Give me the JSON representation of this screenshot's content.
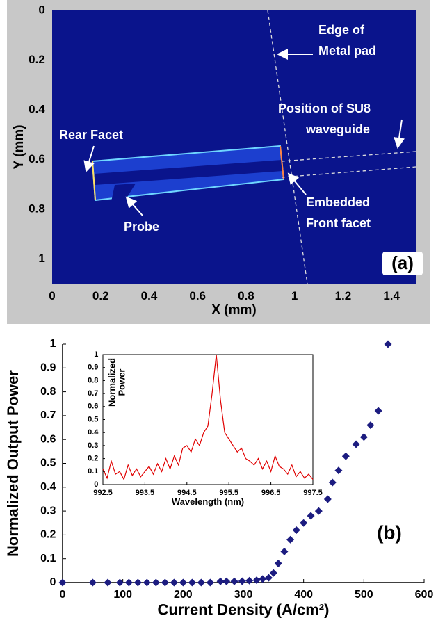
{
  "chart_data": [
    {
      "type": "image",
      "x_label": "X (mm)",
      "y_label": "Y (mm)",
      "xlim": [
        0,
        1.5
      ],
      "ylim": [
        0,
        1.1
      ],
      "y_reversed": true,
      "xticks": [
        0,
        0.2,
        0.4,
        0.6,
        0.8,
        1,
        1.2,
        1.4
      ],
      "yticks": [
        0,
        0.2,
        0.4,
        0.6,
        0.8,
        1
      ],
      "annotations": [
        "Rear Facet",
        "Probe",
        [
          "Embedded",
          "Front facet"
        ],
        [
          "Edge of",
          "Metal pad"
        ],
        [
          "Position of SU8",
          "waveguide"
        ]
      ],
      "panel_label": "(a)"
    },
    {
      "type": "scatter",
      "x_label": "Current Density (A/cm²)",
      "y_label": "Normalized Output Power",
      "xlim": [
        0,
        600
      ],
      "ylim": [
        0,
        1
      ],
      "xticks": [
        0,
        100,
        200,
        300,
        400,
        500,
        600
      ],
      "yticks": [
        0,
        0.1,
        0.2,
        0.3,
        0.4,
        0.5,
        0.6,
        0.7,
        0.8,
        0.9,
        1
      ],
      "color": "#1c1c80",
      "x": [
        0,
        50,
        75,
        95,
        110,
        125,
        140,
        155,
        170,
        185,
        200,
        215,
        230,
        245,
        262,
        272,
        285,
        298,
        310,
        322,
        332,
        342,
        350,
        358,
        368,
        378,
        388,
        400,
        412,
        425,
        440,
        448,
        458,
        470,
        487,
        500,
        511,
        524,
        540
      ],
      "values": [
        0,
        0,
        0,
        0,
        0,
        0,
        0,
        0,
        0,
        0,
        0,
        0,
        0,
        0,
        0.005,
        0.005,
        0.005,
        0.006,
        0.008,
        0.01,
        0.015,
        0.02,
        0.04,
        0.08,
        0.13,
        0.18,
        0.22,
        0.25,
        0.28,
        0.3,
        0.35,
        0.42,
        0.47,
        0.53,
        0.58,
        0.61,
        0.66,
        0.72,
        1.0
      ],
      "panel_label": "(b)"
    },
    {
      "type": "line",
      "x_label": "Wavelength (nm)",
      "y_label": [
        "Normalized",
        "Power"
      ],
      "xlim": [
        992.5,
        997.5
      ],
      "ylim": [
        0,
        1
      ],
      "xticks": [
        992.5,
        993.5,
        994.5,
        995.5,
        996.5,
        997.5
      ],
      "yticks": [
        0,
        0.1,
        0.2,
        0.3,
        0.4,
        0.5,
        0.6,
        0.7,
        0.8,
        0.9,
        1
      ],
      "color": "#e00000",
      "x": [
        992.5,
        992.6,
        992.7,
        992.8,
        992.9,
        993.0,
        993.1,
        993.2,
        993.3,
        993.4,
        993.5,
        993.6,
        993.7,
        993.8,
        993.9,
        994.0,
        994.1,
        994.2,
        994.3,
        994.4,
        994.5,
        994.6,
        994.7,
        994.8,
        994.9,
        995.0,
        995.1,
        995.2,
        995.3,
        995.4,
        995.5,
        995.6,
        995.7,
        995.8,
        995.9,
        996.0,
        996.1,
        996.2,
        996.3,
        996.4,
        996.5,
        996.6,
        996.7,
        996.8,
        996.9,
        997.0,
        997.1,
        997.2,
        997.3,
        997.4,
        997.5
      ],
      "values": [
        0.12,
        0.05,
        0.18,
        0.08,
        0.1,
        0.04,
        0.15,
        0.07,
        0.12,
        0.06,
        0.1,
        0.14,
        0.08,
        0.16,
        0.1,
        0.2,
        0.12,
        0.22,
        0.15,
        0.28,
        0.3,
        0.25,
        0.35,
        0.3,
        0.4,
        0.45,
        0.7,
        1.0,
        0.65,
        0.4,
        0.35,
        0.3,
        0.25,
        0.28,
        0.2,
        0.18,
        0.15,
        0.2,
        0.12,
        0.18,
        0.1,
        0.22,
        0.14,
        0.12,
        0.08,
        0.15,
        0.06,
        0.1,
        0.05,
        0.08,
        0.04
      ]
    }
  ]
}
